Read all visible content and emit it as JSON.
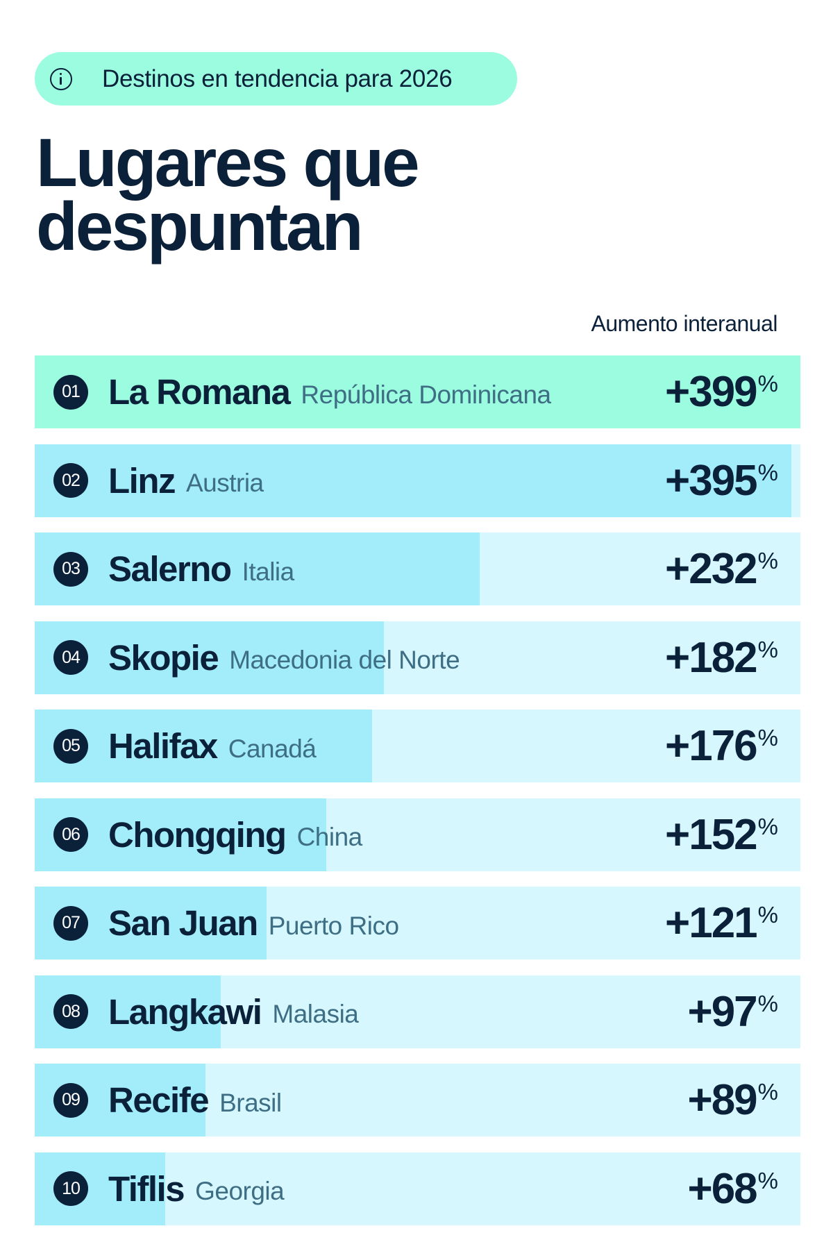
{
  "header": {
    "pill_label": "Destinos en tendencia para 2026",
    "pill_icon": "info-icon",
    "title_line1": "Lugares que",
    "title_line2": "despuntan"
  },
  "column_label": "Aumento interanual",
  "colors": {
    "text": "#0b2039",
    "country_text": "#3e6e84",
    "highlight": "#9cfce0",
    "bar_fill": "#a3edfb",
    "bar_track": "#d6f7fe"
  },
  "rows": [
    {
      "rank": "01",
      "name": "La Romana",
      "country": "República Dominicana",
      "value": "+399",
      "unit": "%",
      "pct": 100
    },
    {
      "rank": "02",
      "name": "Linz",
      "country": "Austria",
      "value": "+395",
      "unit": "%",
      "pct": 98.8
    },
    {
      "rank": "03",
      "name": "Salerno",
      "country": "Italia",
      "value": "+232",
      "unit": "%",
      "pct": 58.1
    },
    {
      "rank": "04",
      "name": "Skopie",
      "country": "Macedonia del Norte",
      "value": "+182",
      "unit": "%",
      "pct": 45.6
    },
    {
      "rank": "05",
      "name": "Halifax",
      "country": "Canadá",
      "value": "+176",
      "unit": "%",
      "pct": 44.1
    },
    {
      "rank": "06",
      "name": "Chongqing",
      "country": "China",
      "value": "+152",
      "unit": "%",
      "pct": 38.1
    },
    {
      "rank": "07",
      "name": "San Juan",
      "country": "Puerto Rico",
      "value": "+121",
      "unit": "%",
      "pct": 30.3
    },
    {
      "rank": "08",
      "name": "Langkawi",
      "country": "Malasia",
      "value": "+97",
      "unit": "%",
      "pct": 24.3
    },
    {
      "rank": "09",
      "name": "Recife",
      "country": "Brasil",
      "value": "+89",
      "unit": "%",
      "pct": 22.3
    },
    {
      "rank": "10",
      "name": "Tiflis",
      "country": "Georgia",
      "value": "+68",
      "unit": "%",
      "pct": 17.0
    }
  ],
  "chart_data": {
    "type": "bar",
    "orientation": "horizontal",
    "title": "Lugares que despuntan",
    "subtitle": "Destinos en tendencia para 2026",
    "xlabel": "Aumento interanual (%)",
    "ylabel": "",
    "categories": [
      "La Romana (República Dominicana)",
      "Linz (Austria)",
      "Salerno (Italia)",
      "Skopie (Macedonia del Norte)",
      "Halifax (Canadá)",
      "Chongqing (China)",
      "San Juan (Puerto Rico)",
      "Langkawi (Malasia)",
      "Recife (Brasil)",
      "Tiflis (Georgia)"
    ],
    "values": [
      399,
      395,
      232,
      182,
      176,
      152,
      121,
      97,
      89,
      68
    ],
    "xlim": [
      0,
      399
    ],
    "grid": false,
    "legend": "none"
  }
}
